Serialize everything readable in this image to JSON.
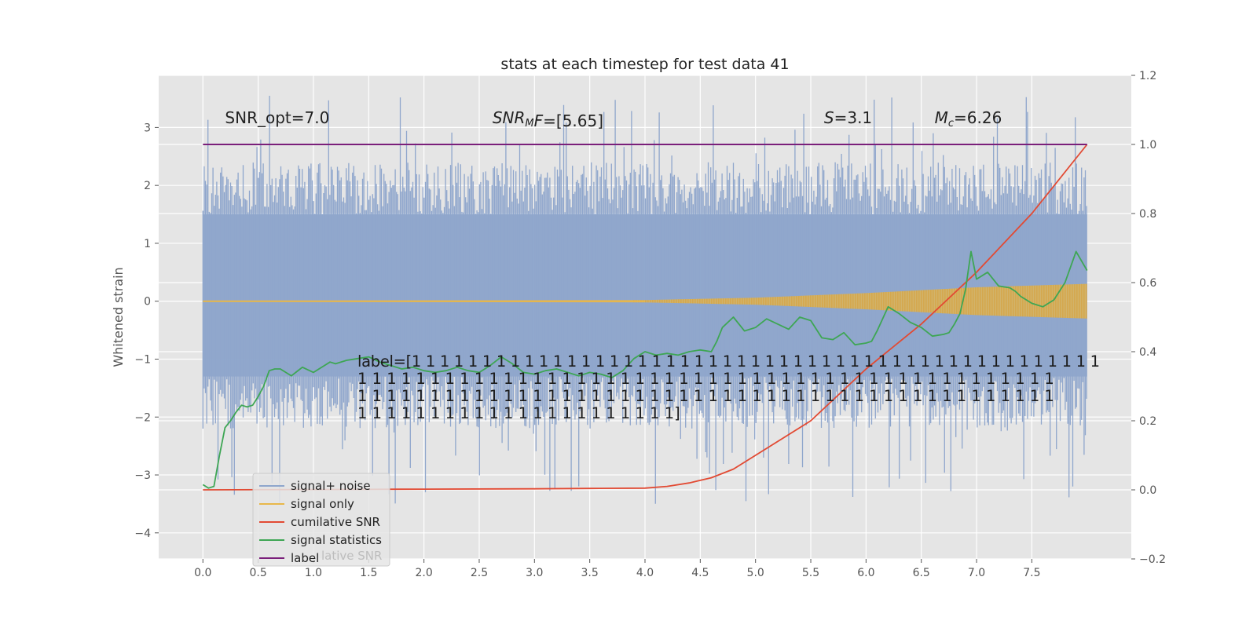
{
  "chart_data": {
    "type": "line",
    "title": "stats at each timestep for test data 41",
    "xlabel": "",
    "ylabel": "Whitened strain",
    "y2label": "",
    "xlim": [
      -0.4,
      8.4
    ],
    "ylim": [
      -4.45,
      3.9
    ],
    "y2lim": [
      -0.2,
      1.2
    ],
    "grid": true,
    "x_ticks": [
      0.0,
      0.5,
      1.0,
      1.5,
      2.0,
      2.5,
      3.0,
      3.5,
      4.0,
      4.5,
      5.0,
      5.5,
      6.0,
      6.5,
      7.0,
      7.5
    ],
    "x_tick_labels": [
      "0.0",
      "0.5",
      "1.0",
      "1.5",
      "2.0",
      "2.5",
      "3.0",
      "3.5",
      "4.0",
      "4.5",
      "5.0",
      "5.5",
      "6.0",
      "6.5",
      "7.0",
      "7.5"
    ],
    "y_ticks": [
      3,
      2,
      1,
      0,
      -1,
      -2,
      -3,
      -4
    ],
    "y_tick_labels": [
      "3",
      "2",
      "1",
      "0",
      "−1",
      "−2",
      "−3",
      "−4"
    ],
    "y2_ticks": [
      1.2,
      1.0,
      0.8,
      0.6,
      0.4,
      0.2,
      0.0,
      -0.2
    ],
    "y2_tick_labels": [
      "1.2",
      "1.0",
      "0.8",
      "0.6",
      "0.4",
      "0.2",
      "0.0",
      "−0.2"
    ],
    "legend_position": "lower-left",
    "legend": [
      {
        "label": "signal+ noise",
        "color": "#8fa6cc"
      },
      {
        "label": "signal only",
        "color": "#e8b74a"
      },
      {
        "label": "cumilative SNR",
        "color": "#e24a33"
      },
      {
        "label": "signal statistics",
        "color": "#3ea654"
      },
      {
        "label": "label",
        "color": "#7a1f7a"
      }
    ],
    "legend_hidden_text": "lative SNR",
    "series": [
      {
        "name": "signal+ noise",
        "axis": "left",
        "color": "#8fa6cc",
        "t_end": 8.0,
        "band_upper": 1.5,
        "band_lower": -1.3,
        "peak_max": 3.55,
        "peak_min": -3.5
      },
      {
        "name": "signal only",
        "axis": "left",
        "color": "#e8b74a",
        "x": [
          0.0,
          4.0,
          5.0,
          6.0,
          7.0,
          8.0
        ],
        "amplitude": [
          0.01,
          0.02,
          0.06,
          0.14,
          0.24,
          0.3
        ]
      },
      {
        "name": "cumilative SNR",
        "axis": "right",
        "color": "#e24a33",
        "x": [
          0.0,
          1.0,
          2.0,
          3.0,
          3.5,
          4.0,
          4.2,
          4.4,
          4.6,
          4.8,
          5.0,
          5.5,
          6.0,
          6.5,
          7.0,
          7.5,
          8.0
        ],
        "y": [
          0.0,
          0.001,
          0.002,
          0.003,
          0.004,
          0.005,
          0.01,
          0.02,
          0.035,
          0.06,
          0.1,
          0.2,
          0.35,
          0.48,
          0.63,
          0.8,
          1.0
        ]
      },
      {
        "name": "signal statistics",
        "axis": "right",
        "color": "#3ea654",
        "x": [
          0.0,
          0.05,
          0.1,
          0.15,
          0.2,
          0.25,
          0.3,
          0.35,
          0.4,
          0.45,
          0.5,
          0.55,
          0.6,
          0.65,
          0.7,
          0.75,
          0.8,
          0.9,
          1.0,
          1.05,
          1.1,
          1.15,
          1.2,
          1.3,
          1.4,
          1.5,
          1.6,
          1.7,
          1.8,
          1.9,
          2.0,
          2.1,
          2.2,
          2.3,
          2.4,
          2.5,
          2.6,
          2.7,
          2.8,
          2.9,
          3.0,
          3.1,
          3.2,
          3.3,
          3.4,
          3.5,
          3.6,
          3.7,
          3.8,
          3.9,
          4.0,
          4.1,
          4.2,
          4.3,
          4.4,
          4.5,
          4.6,
          4.65,
          4.7,
          4.8,
          4.9,
          5.0,
          5.1,
          5.2,
          5.3,
          5.4,
          5.5,
          5.6,
          5.7,
          5.8,
          5.9,
          6.0,
          6.05,
          6.1,
          6.2,
          6.3,
          6.4,
          6.5,
          6.6,
          6.7,
          6.75,
          6.8,
          6.85,
          6.9,
          6.95,
          7.0,
          7.1,
          7.2,
          7.3,
          7.35,
          7.4,
          7.5,
          7.6,
          7.7,
          7.8,
          7.9,
          8.0
        ],
        "y": [
          0.015,
          0.005,
          0.01,
          0.1,
          0.18,
          0.2,
          0.225,
          0.245,
          0.24,
          0.245,
          0.27,
          0.3,
          0.345,
          0.35,
          0.35,
          0.34,
          0.33,
          0.355,
          0.34,
          0.35,
          0.36,
          0.37,
          0.365,
          0.375,
          0.38,
          0.385,
          0.37,
          0.36,
          0.35,
          0.355,
          0.345,
          0.34,
          0.345,
          0.355,
          0.345,
          0.34,
          0.36,
          0.385,
          0.365,
          0.34,
          0.335,
          0.345,
          0.35,
          0.34,
          0.33,
          0.34,
          0.335,
          0.325,
          0.345,
          0.38,
          0.4,
          0.39,
          0.395,
          0.39,
          0.4,
          0.405,
          0.4,
          0.43,
          0.47,
          0.5,
          0.46,
          0.47,
          0.495,
          0.48,
          0.465,
          0.5,
          0.49,
          0.44,
          0.435,
          0.455,
          0.42,
          0.425,
          0.43,
          0.46,
          0.53,
          0.51,
          0.485,
          0.47,
          0.445,
          0.45,
          0.455,
          0.48,
          0.51,
          0.58,
          0.69,
          0.61,
          0.63,
          0.59,
          0.585,
          0.575,
          0.56,
          0.54,
          0.53,
          0.55,
          0.6,
          0.69,
          0.635
        ]
      },
      {
        "name": "label",
        "axis": "right",
        "color": "#7a1f7a",
        "x": [
          0.0,
          8.0
        ],
        "y": [
          1.0,
          1.0
        ]
      }
    ],
    "annotations": [
      {
        "id": "snr-opt",
        "text": "SNR_opt=7.0",
        "x": 0.2,
        "y": 3.07
      },
      {
        "id": "snr-mf",
        "text_base": "SNR",
        "text_sub": "M",
        "text_rest": "F=[5.65]",
        "x": 2.62,
        "y": 3.07
      },
      {
        "id": "s-value",
        "text_base": "S",
        "text_rest": "=3.1",
        "x": 5.62,
        "y": 3.07
      },
      {
        "id": "mc-value",
        "text_base": "M",
        "text_sub": "c",
        "text_rest": "=6.26",
        "x": 6.62,
        "y": 3.07
      }
    ],
    "label_text_lines": [
      "label=[1 1 1 1 1 1 1 1 1 1 1 1 1 1 1 1 1 1 1 1 1 1 1 1 1 1 1 1 1 1 1 1 1 1 1 1 1 1 1 1 1 1 1 1 1 1 1 1 1",
      " 1 1 1 1 1 1 1 1 1 1 1 1 1 1 1 1 1 1 1 1 1 1 1 1 1 1 1 1 1 1 1 1 1 1 1 1 1 1 1 1 1 1 1 1 1 1 1 1",
      " 1 1 1 1 1 1 1 1 1 1 1 1 1 1 1 1 1 1 1 1 1 1 1 1 1 1 1 1 1 1 1 1 1 1 1 1 1 1 1 1 1 1 1 1 1 1 1 1",
      " 1 1 1 1 1 1 1 1 1 1 1 1 1 1 1 1 1 1 1 1 1 1]"
    ]
  }
}
